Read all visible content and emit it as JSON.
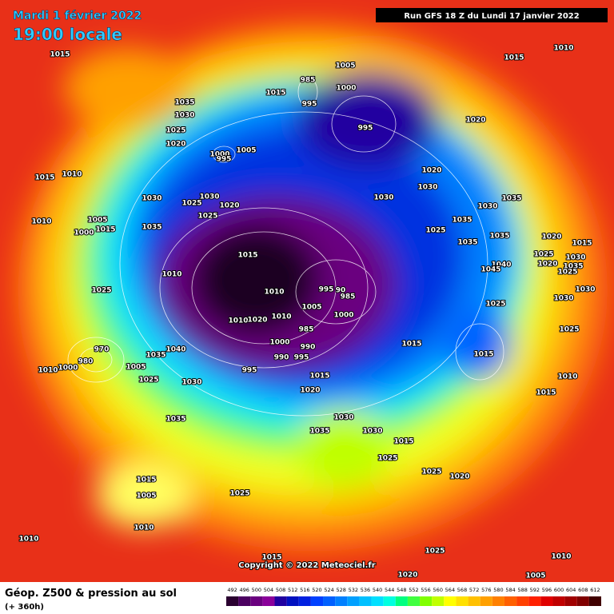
{
  "header": {
    "date": "Mardi 1 février 2022",
    "time": "19:00 locale",
    "run": "Run GFS 18 Z du Lundi 17 janvier 2022"
  },
  "footer": {
    "title": "Géop. Z500 & pression au sol",
    "subtitle": "(+ 360h)",
    "copyright": "Copyright © 2022 Meteociel.fr"
  },
  "scale": {
    "values": [
      492,
      496,
      500,
      504,
      508,
      512,
      516,
      520,
      524,
      528,
      532,
      536,
      540,
      544,
      548,
      552,
      556,
      560,
      564,
      568,
      572,
      576,
      580,
      584,
      588,
      592,
      596,
      600,
      604,
      608,
      612
    ],
    "colors": [
      "#2a0030",
      "#4b0060",
      "#6a007f",
      "#8a009a",
      "#2000a0",
      "#0010c0",
      "#0020e0",
      "#0040ff",
      "#0060ff",
      "#0080ff",
      "#00a0ff",
      "#00c0ff",
      "#00e0ff",
      "#00ffe0",
      "#00ff80",
      "#40ff40",
      "#80ff00",
      "#c0ff00",
      "#ffff00",
      "#ffe000",
      "#ffc000",
      "#ffa000",
      "#ff8000",
      "#ff6000",
      "#ff4000",
      "#ff2000",
      "#e00000",
      "#c00000",
      "#a00000",
      "#800000",
      "#400000"
    ]
  },
  "isobar_labels": [
    "1015",
    "1010",
    "1015",
    "1005",
    "985",
    "1000",
    "1015",
    "995",
    "1035",
    "1030",
    "1025",
    "1020",
    "1020",
    "995",
    "1000",
    "1005",
    "995",
    "1020",
    "1015",
    "1010",
    "1030",
    "1030",
    "1030",
    "1030",
    "1025",
    "1020",
    "1025",
    "1030",
    "1035",
    "1005",
    "1010",
    "1035",
    "1025",
    "1000",
    "1015",
    "1035",
    "1035",
    "1020",
    "1035",
    "1015",
    "1025",
    "1015",
    "1030",
    "1020",
    "1035",
    "1040",
    "1045",
    "1025",
    "1010",
    "995",
    "90",
    "1010",
    "985",
    "1025",
    "1030",
    "1030",
    "1025",
    "1005",
    "1010",
    "1000",
    "1010",
    "1020",
    "985",
    "1025",
    "1015",
    "1000",
    "990",
    "970",
    "1040",
    "1035",
    "1015",
    "990",
    "995",
    "980",
    "1005",
    "1010",
    "1000",
    "995",
    "1015",
    "1010",
    "1025",
    "1030",
    "1020",
    "1015",
    "1035",
    "1030",
    "1035",
    "1030",
    "1015",
    "1025",
    "1025",
    "1020",
    "1015",
    "1025",
    "1005",
    "1010",
    "1010",
    "1025",
    "1010",
    "1015",
    "1005",
    "1020"
  ]
}
